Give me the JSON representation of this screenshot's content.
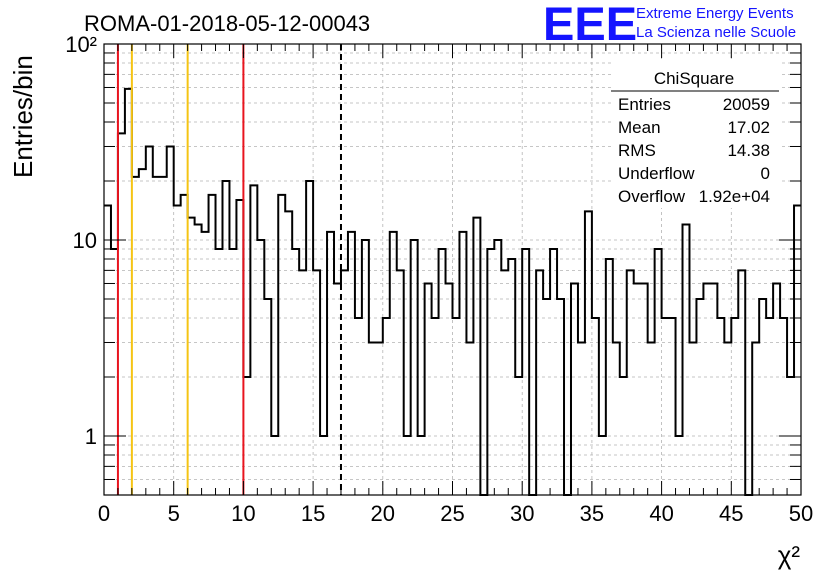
{
  "title": "ROMA-01-2018-05-12-00043",
  "logo": {
    "mark": "EEE",
    "line1": "Extreme Energy Events",
    "line2": "La Scienza nelle Scuole",
    "color": "#1414ff"
  },
  "stats_box": {
    "name": "ChiSquare",
    "rows": [
      {
        "label": "Entries",
        "value": "20059"
      },
      {
        "label": "Mean",
        "value": "17.02"
      },
      {
        "label": "RMS",
        "value": "14.38"
      },
      {
        "label": "Underflow",
        "value": "0"
      },
      {
        "label": "Overflow",
        "value": "1.92e+04"
      }
    ]
  },
  "chart_data": {
    "type": "histogram",
    "xlabel": "χ²",
    "ylabel": "Entries/bin",
    "xlim": [
      0,
      50
    ],
    "ylim": [
      0.5,
      100
    ],
    "y_scale": "log",
    "grid": true,
    "bin_width": 0.5,
    "x_ticks": [
      0,
      5,
      10,
      15,
      20,
      25,
      30,
      35,
      40,
      45,
      50
    ],
    "x_tick_labels": [
      "0",
      "5",
      "10",
      "15",
      "20",
      "25",
      "30",
      "35",
      "40",
      "45",
      "50"
    ],
    "y_ticks": [
      1,
      10,
      100
    ],
    "y_tick_labels": [
      "1",
      "10",
      "10²"
    ],
    "bin_contents": [
      15,
      9,
      35,
      59,
      21,
      23,
      30,
      21,
      21,
      30,
      15,
      17,
      13,
      12,
      11,
      17,
      9,
      20,
      9,
      16,
      2,
      19,
      10,
      5,
      1,
      17,
      14,
      9,
      7,
      20,
      7,
      1,
      11,
      6,
      7,
      11,
      4,
      10,
      3,
      3,
      4,
      11,
      7,
      1,
      10,
      1,
      6,
      4,
      9,
      6,
      4,
      11,
      3,
      13,
      0,
      9,
      10,
      7,
      8,
      2,
      9,
      0,
      7,
      5,
      9,
      5,
      0,
      6,
      3,
      14,
      4,
      1,
      8,
      3,
      2,
      7,
      6,
      6,
      3,
      9,
      4,
      4,
      1,
      12,
      3,
      5,
      6,
      6,
      4,
      3,
      4,
      7,
      0,
      3,
      5,
      4,
      6,
      4,
      2,
      15
    ],
    "reference_lines": [
      {
        "x": 1,
        "color": "#e8141e",
        "style": "solid"
      },
      {
        "x": 2,
        "color": "#f5c414",
        "style": "solid"
      },
      {
        "x": 6,
        "color": "#f5c414",
        "style": "solid"
      },
      {
        "x": 10,
        "color": "#e8141e",
        "style": "solid"
      },
      {
        "x": 17,
        "color": "#000000",
        "style": "dashed"
      }
    ],
    "line_color": "#000000"
  }
}
